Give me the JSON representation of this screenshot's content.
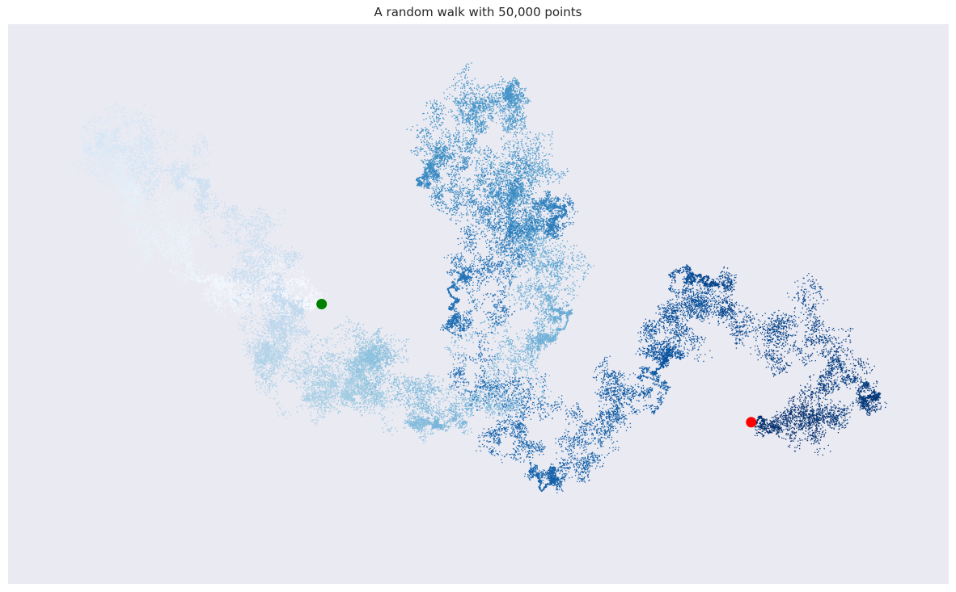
{
  "chart_data": {
    "type": "scatter",
    "title": "A random walk with 50,000 points",
    "num_points": 50000,
    "colormap": "Blues",
    "axes_visible": false,
    "grid": false,
    "background_color": "#eaeaf2",
    "x_range": [
      -100,
      200
    ],
    "y_range": [
      -90,
      90
    ],
    "start_point": {
      "x": 0,
      "y": 0,
      "color": "#008000"
    },
    "end_point": {
      "x": 137,
      "y": -38,
      "color": "#ff0000"
    },
    "waypoints": [
      {
        "step": 0,
        "x": 0,
        "y": 0
      },
      {
        "step": 2500,
        "x": -40,
        "y": 8
      },
      {
        "step": 5000,
        "x": -62,
        "y": 38
      },
      {
        "step": 7500,
        "x": -72,
        "y": 55
      },
      {
        "step": 10000,
        "x": -40,
        "y": 40
      },
      {
        "step": 12500,
        "x": -10,
        "y": 0
      },
      {
        "step": 15000,
        "x": -20,
        "y": -18
      },
      {
        "step": 17500,
        "x": 8,
        "y": -30
      },
      {
        "step": 20000,
        "x": 15,
        "y": -15
      },
      {
        "step": 22500,
        "x": 35,
        "y": -40
      },
      {
        "step": 25000,
        "x": 78,
        "y": -6
      },
      {
        "step": 27500,
        "x": 60,
        "y": 30
      },
      {
        "step": 30000,
        "x": 60,
        "y": 70
      },
      {
        "step": 32500,
        "x": 30,
        "y": 40
      },
      {
        "step": 35000,
        "x": 78,
        "y": 30
      },
      {
        "step": 37500,
        "x": 40,
        "y": 5
      },
      {
        "step": 40000,
        "x": 70,
        "y": -60
      },
      {
        "step": 42500,
        "x": 108,
        "y": -20
      },
      {
        "step": 45000,
        "x": 118,
        "y": 10
      },
      {
        "step": 47500,
        "x": 178,
        "y": -30
      },
      {
        "step": 50000,
        "x": 137,
        "y": -38
      }
    ]
  }
}
